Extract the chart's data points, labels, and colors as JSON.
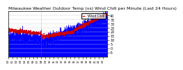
{
  "title": "Milwaukee Weather Outdoor Temp (vs) Wind Chill per Minute (Last 24 Hours)",
  "bg_color": "#ffffff",
  "plot_bg_color": "#ffffff",
  "grid_color": "#cccccc",
  "blue_color": "#0000ff",
  "red_color": "#cc0000",
  "n_points": 1440,
  "ylim_min": -10,
  "ylim_max": 45,
  "yticks": [
    -5,
    0,
    5,
    10,
    15,
    20,
    25,
    30,
    35,
    40
  ],
  "title_fontsize": 4.5,
  "tick_fontsize": 3.5,
  "legend_fontsize": 3.5
}
